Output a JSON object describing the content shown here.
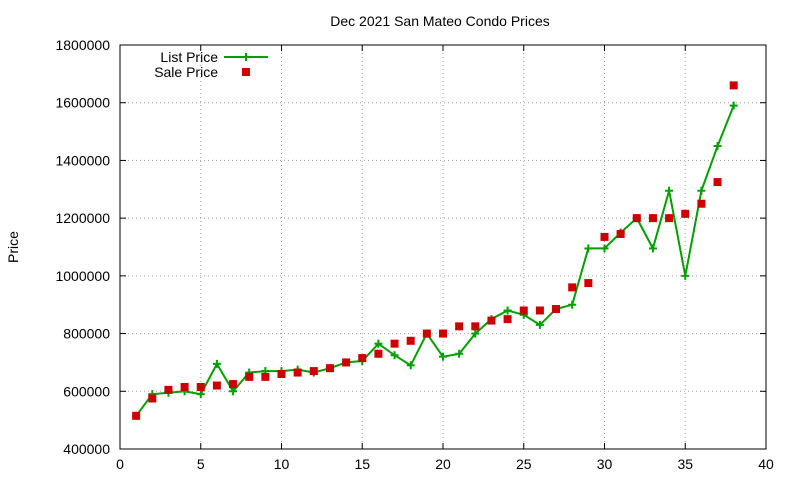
{
  "chart_data": {
    "type": "line",
    "title": "Dec 2021 San Mateo Condo Prices",
    "xlabel": "",
    "ylabel": "Price",
    "xlim": [
      0,
      40
    ],
    "ylim": [
      400000,
      1800000
    ],
    "xticks": [
      0,
      5,
      10,
      15,
      20,
      25,
      30,
      35,
      40
    ],
    "yticks": [
      400000,
      600000,
      800000,
      1000000,
      1200000,
      1400000,
      1600000,
      1800000
    ],
    "grid": true,
    "legend_position": "top-left",
    "series": [
      {
        "name": "List Price",
        "style": "linespoints",
        "marker": "plus",
        "color": "#00a000",
        "x": [
          1,
          2,
          3,
          4,
          5,
          6,
          7,
          8,
          9,
          10,
          11,
          12,
          13,
          14,
          15,
          16,
          17,
          18,
          19,
          20,
          21,
          22,
          23,
          24,
          25,
          26,
          27,
          28,
          29,
          30,
          31,
          32,
          33,
          34,
          35,
          36,
          37,
          38
        ],
        "values": [
          515000,
          590000,
          595000,
          600000,
          590000,
          695000,
          600000,
          665000,
          670000,
          670000,
          675000,
          665000,
          680000,
          700000,
          705000,
          765000,
          725000,
          690000,
          800000,
          720000,
          730000,
          800000,
          850000,
          880000,
          865000,
          830000,
          885000,
          900000,
          1095000,
          1095000,
          1150000,
          1200000,
          1095000,
          1295000,
          1000000,
          1295000,
          1450000,
          1590000
        ]
      },
      {
        "name": "Sale Price",
        "style": "points",
        "marker": "square",
        "color": "#cc0000",
        "x": [
          1,
          2,
          3,
          4,
          5,
          6,
          7,
          8,
          9,
          10,
          11,
          12,
          13,
          14,
          15,
          16,
          17,
          18,
          19,
          20,
          21,
          22,
          23,
          24,
          25,
          26,
          27,
          28,
          29,
          30,
          31,
          32,
          33,
          34,
          35,
          36,
          37,
          38
        ],
        "values": [
          515000,
          575000,
          605000,
          615000,
          615000,
          620000,
          625000,
          650000,
          650000,
          660000,
          665000,
          670000,
          680000,
          700000,
          715000,
          730000,
          765000,
          775000,
          800000,
          800000,
          825000,
          825000,
          845000,
          850000,
          880000,
          880000,
          885000,
          960000,
          975000,
          1135000,
          1145000,
          1200000,
          1200000,
          1200000,
          1215000,
          1250000,
          1325000,
          1660000
        ]
      }
    ]
  }
}
